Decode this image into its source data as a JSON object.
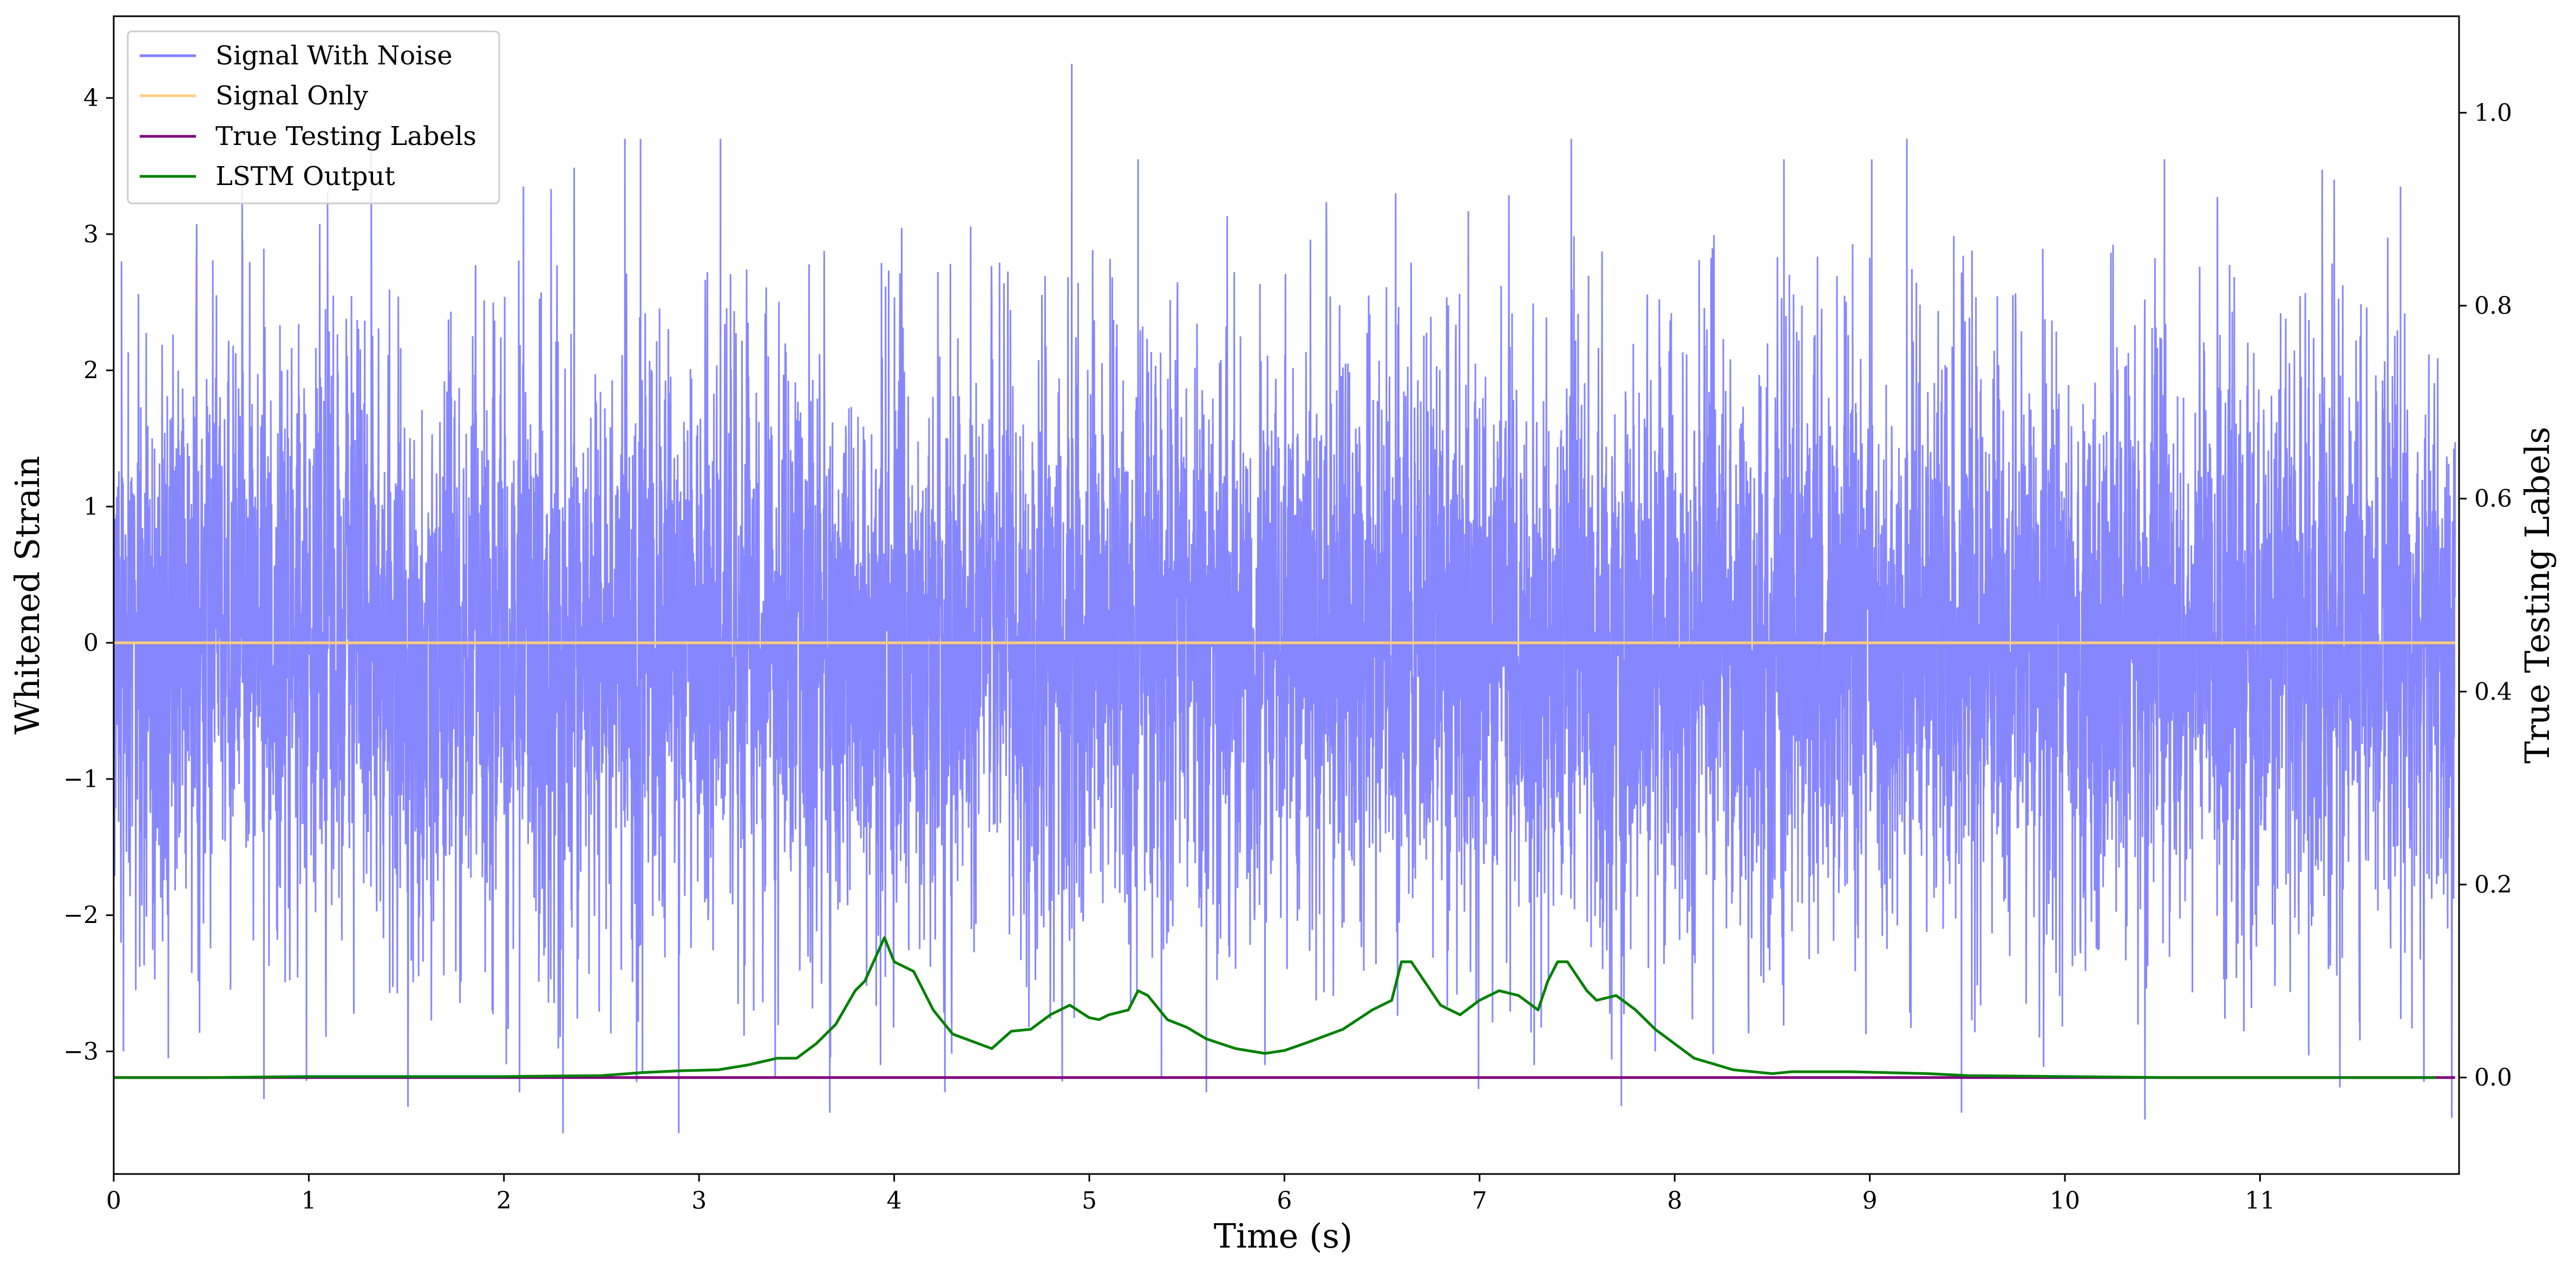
{
  "chart_data": {
    "type": "line",
    "x_axis": {
      "label": "Time (s)",
      "range": [
        0,
        12.02
      ],
      "ticks": [
        0,
        1,
        2,
        3,
        4,
        5,
        6,
        7,
        8,
        9,
        10,
        11
      ]
    },
    "y_axis_left": {
      "label": "Whitened Strain",
      "range": [
        -3.9,
        4.6
      ],
      "ticks": [
        -3,
        -2,
        -1,
        0,
        1,
        2,
        3,
        4
      ],
      "tick_labels": [
        "−3",
        "−2",
        "−1",
        "0",
        "1",
        "2",
        "3",
        "4"
      ]
    },
    "y_axis_right": {
      "label": "True Testing Labels",
      "range": [
        -0.1,
        1.1
      ],
      "ticks": [
        0.0,
        0.2,
        0.4,
        0.6,
        0.8,
        1.0
      ],
      "tick_labels": [
        "0.0",
        "0.2",
        "0.4",
        "0.6",
        "0.8",
        "1.0"
      ]
    },
    "legend": {
      "placement": "top-left"
    },
    "series": [
      {
        "name": "Signal With Noise",
        "axis": "left",
        "color": "#8080ff",
        "description_of_values": "dense noise",
        "approx_envelope": {
          "typical_min": -2.2,
          "typical_max": 2.2
        },
        "notable_spikes": [
          {
            "x": 0.04,
            "y": 2.8
          },
          {
            "x": 0.05,
            "y": -3.0
          },
          {
            "x": 0.28,
            "y": -3.05
          },
          {
            "x": 0.66,
            "y": 2.95
          },
          {
            "x": 0.77,
            "y": -3.35
          },
          {
            "x": 1.32,
            "y": 3.6
          },
          {
            "x": 2.08,
            "y": -3.3
          },
          {
            "x": 2.1,
            "y": 3.35
          },
          {
            "x": 2.62,
            "y": 3.7
          },
          {
            "x": 2.7,
            "y": 3.7
          },
          {
            "x": 2.71,
            "y": -3.15
          },
          {
            "x": 3.11,
            "y": 3.7
          },
          {
            "x": 3.39,
            "y": -3.2
          },
          {
            "x": 3.67,
            "y": -3.45
          },
          {
            "x": 3.93,
            "y": -3.1
          },
          {
            "x": 4.26,
            "y": -3.3
          },
          {
            "x": 4.91,
            "y": 4.25
          },
          {
            "x": 5.25,
            "y": 3.55
          },
          {
            "x": 5.37,
            "y": -3.2
          },
          {
            "x": 5.6,
            "y": -3.3
          },
          {
            "x": 5.9,
            "y": -3.1
          },
          {
            "x": 6.57,
            "y": 3.3
          },
          {
            "x": 7.28,
            "y": -3.1
          },
          {
            "x": 7.47,
            "y": 3.7
          },
          {
            "x": 7.9,
            "y": -3.0
          },
          {
            "x": 8.56,
            "y": 3.55
          },
          {
            "x": 9.01,
            "y": 3.55
          },
          {
            "x": 9.19,
            "y": 3.7
          },
          {
            "x": 9.47,
            "y": -3.45
          },
          {
            "x": 10.41,
            "y": -3.5
          },
          {
            "x": 10.51,
            "y": 3.55
          },
          {
            "x": 11.38,
            "y": 3.4
          },
          {
            "x": 11.72,
            "y": 3.35
          }
        ]
      },
      {
        "name": "Signal Only",
        "axis": "left",
        "color": "#ffcc80",
        "x": [
          0,
          12
        ],
        "y": [
          0,
          0
        ]
      },
      {
        "name": "True Testing Labels",
        "axis": "right",
        "color": "#800080",
        "x": [
          0,
          12
        ],
        "y": [
          0,
          0
        ]
      },
      {
        "name": "LSTM Output",
        "axis": "right",
        "color": "#008000",
        "x": [
          0,
          0.5,
          1.0,
          1.5,
          2.0,
          2.5,
          2.7,
          2.9,
          3.1,
          3.25,
          3.4,
          3.5,
          3.6,
          3.7,
          3.8,
          3.85,
          3.95,
          4.0,
          4.1,
          4.2,
          4.3,
          4.5,
          4.6,
          4.7,
          4.8,
          4.9,
          5.0,
          5.05,
          5.1,
          5.2,
          5.25,
          5.3,
          5.4,
          5.5,
          5.6,
          5.75,
          5.9,
          6.0,
          6.1,
          6.3,
          6.45,
          6.55,
          6.6,
          6.65,
          6.7,
          6.8,
          6.9,
          7.0,
          7.1,
          7.2,
          7.3,
          7.35,
          7.4,
          7.45,
          7.55,
          7.6,
          7.7,
          7.8,
          7.9,
          8.1,
          8.3,
          8.5,
          8.6,
          8.7,
          8.9,
          9.1,
          9.3,
          9.5,
          10.0,
          10.5,
          11.0,
          11.5,
          11.9
        ],
        "y": [
          0.0,
          0.0,
          0.001,
          0.001,
          0.001,
          0.002,
          0.005,
          0.007,
          0.008,
          0.013,
          0.02,
          0.02,
          0.035,
          0.055,
          0.09,
          0.1,
          0.145,
          0.12,
          0.11,
          0.07,
          0.045,
          0.03,
          0.048,
          0.05,
          0.065,
          0.075,
          0.062,
          0.06,
          0.065,
          0.07,
          0.09,
          0.085,
          0.06,
          0.052,
          0.04,
          0.03,
          0.025,
          0.028,
          0.035,
          0.05,
          0.07,
          0.08,
          0.12,
          0.12,
          0.105,
          0.075,
          0.065,
          0.08,
          0.09,
          0.085,
          0.07,
          0.1,
          0.12,
          0.12,
          0.09,
          0.08,
          0.085,
          0.07,
          0.05,
          0.02,
          0.008,
          0.004,
          0.006,
          0.006,
          0.006,
          0.005,
          0.004,
          0.002,
          0.001,
          0.0,
          0.0,
          0.0,
          0.0
        ]
      }
    ]
  }
}
